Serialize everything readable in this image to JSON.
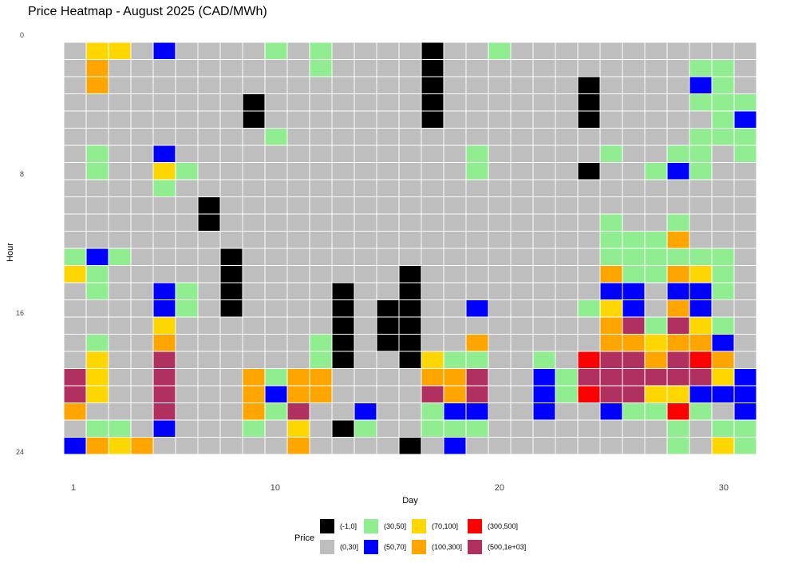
{
  "chart_data": {
    "type": "heatmap",
    "title": "Price Heatmap - August 2025 (CAD/MWh)",
    "xlabel": "Day",
    "ylabel": "Hour",
    "x_ticks": [
      1,
      10,
      20,
      30
    ],
    "y_ticks": [
      0,
      8,
      16,
      24
    ],
    "days": [
      1,
      31
    ],
    "hours": [
      0,
      23
    ],
    "legend": {
      "title": "Price",
      "position": "bottom",
      "entries": [
        {
          "label": "(-1,0]",
          "color": "#000000"
        },
        {
          "label": "(0,30]",
          "color": "#bebebe"
        },
        {
          "label": "(30,50]",
          "color": "#90ee90"
        },
        {
          "label": "(50,70]",
          "color": "#0000ff"
        },
        {
          "label": "(70,100]",
          "color": "#ffd700"
        },
        {
          "label": "(100,300]",
          "color": "#ffa500"
        },
        {
          "label": "(300,500]",
          "color": "#ff0000"
        },
        {
          "label": "(500,1e+03]",
          "color": "#b03060"
        }
      ]
    },
    "default_category": "(0,30]",
    "cells": [
      {
        "day": 2,
        "hour": 0,
        "cat": "(70,100]"
      },
      {
        "day": 3,
        "hour": 0,
        "cat": "(70,100]"
      },
      {
        "day": 5,
        "hour": 0,
        "cat": "(50,70]"
      },
      {
        "day": 10,
        "hour": 0,
        "cat": "(30,50]"
      },
      {
        "day": 12,
        "hour": 0,
        "cat": "(30,50]"
      },
      {
        "day": 17,
        "hour": 0,
        "cat": "(-1,0]"
      },
      {
        "day": 20,
        "hour": 0,
        "cat": "(30,50]"
      },
      {
        "day": 2,
        "hour": 1,
        "cat": "(100,300]"
      },
      {
        "day": 12,
        "hour": 1,
        "cat": "(30,50]"
      },
      {
        "day": 17,
        "hour": 1,
        "cat": "(-1,0]"
      },
      {
        "day": 29,
        "hour": 1,
        "cat": "(30,50]"
      },
      {
        "day": 30,
        "hour": 1,
        "cat": "(30,50]"
      },
      {
        "day": 2,
        "hour": 2,
        "cat": "(100,300]"
      },
      {
        "day": 17,
        "hour": 2,
        "cat": "(-1,0]"
      },
      {
        "day": 24,
        "hour": 2,
        "cat": "(-1,0]"
      },
      {
        "day": 29,
        "hour": 2,
        "cat": "(50,70]"
      },
      {
        "day": 30,
        "hour": 2,
        "cat": "(30,50]"
      },
      {
        "day": 9,
        "hour": 3,
        "cat": "(-1,0]"
      },
      {
        "day": 17,
        "hour": 3,
        "cat": "(-1,0]"
      },
      {
        "day": 24,
        "hour": 3,
        "cat": "(-1,0]"
      },
      {
        "day": 29,
        "hour": 3,
        "cat": "(30,50]"
      },
      {
        "day": 30,
        "hour": 3,
        "cat": "(30,50]"
      },
      {
        "day": 31,
        "hour": 3,
        "cat": "(30,50]"
      },
      {
        "day": 9,
        "hour": 4,
        "cat": "(-1,0]"
      },
      {
        "day": 17,
        "hour": 4,
        "cat": "(-1,0]"
      },
      {
        "day": 24,
        "hour": 4,
        "cat": "(-1,0]"
      },
      {
        "day": 30,
        "hour": 4,
        "cat": "(30,50]"
      },
      {
        "day": 31,
        "hour": 4,
        "cat": "(50,70]"
      },
      {
        "day": 10,
        "hour": 5,
        "cat": "(30,50]"
      },
      {
        "day": 29,
        "hour": 5,
        "cat": "(30,50]"
      },
      {
        "day": 30,
        "hour": 5,
        "cat": "(30,50]"
      },
      {
        "day": 31,
        "hour": 5,
        "cat": "(30,50]"
      },
      {
        "day": 2,
        "hour": 6,
        "cat": "(30,50]"
      },
      {
        "day": 5,
        "hour": 6,
        "cat": "(50,70]"
      },
      {
        "day": 19,
        "hour": 6,
        "cat": "(30,50]"
      },
      {
        "day": 25,
        "hour": 6,
        "cat": "(30,50]"
      },
      {
        "day": 28,
        "hour": 6,
        "cat": "(30,50]"
      },
      {
        "day": 29,
        "hour": 6,
        "cat": "(30,50]"
      },
      {
        "day": 31,
        "hour": 6,
        "cat": "(30,50]"
      },
      {
        "day": 2,
        "hour": 7,
        "cat": "(30,50]"
      },
      {
        "day": 5,
        "hour": 7,
        "cat": "(70,100]"
      },
      {
        "day": 6,
        "hour": 7,
        "cat": "(30,50]"
      },
      {
        "day": 19,
        "hour": 7,
        "cat": "(30,50]"
      },
      {
        "day": 24,
        "hour": 7,
        "cat": "(-1,0]"
      },
      {
        "day": 27,
        "hour": 7,
        "cat": "(30,50]"
      },
      {
        "day": 28,
        "hour": 7,
        "cat": "(50,70]"
      },
      {
        "day": 29,
        "hour": 7,
        "cat": "(30,50]"
      },
      {
        "day": 5,
        "hour": 8,
        "cat": "(30,50]"
      },
      {
        "day": 7,
        "hour": 9,
        "cat": "(-1,0]"
      },
      {
        "day": 7,
        "hour": 10,
        "cat": "(-1,0]"
      },
      {
        "day": 25,
        "hour": 10,
        "cat": "(30,50]"
      },
      {
        "day": 28,
        "hour": 10,
        "cat": "(30,50]"
      },
      {
        "day": 25,
        "hour": 11,
        "cat": "(30,50]"
      },
      {
        "day": 26,
        "hour": 11,
        "cat": "(30,50]"
      },
      {
        "day": 27,
        "hour": 11,
        "cat": "(30,50]"
      },
      {
        "day": 28,
        "hour": 11,
        "cat": "(100,300]"
      },
      {
        "day": 1,
        "hour": 12,
        "cat": "(30,50]"
      },
      {
        "day": 2,
        "hour": 12,
        "cat": "(50,70]"
      },
      {
        "day": 3,
        "hour": 12,
        "cat": "(30,50]"
      },
      {
        "day": 8,
        "hour": 12,
        "cat": "(-1,0]"
      },
      {
        "day": 25,
        "hour": 12,
        "cat": "(30,50]"
      },
      {
        "day": 26,
        "hour": 12,
        "cat": "(30,50]"
      },
      {
        "day": 27,
        "hour": 12,
        "cat": "(30,50]"
      },
      {
        "day": 28,
        "hour": 12,
        "cat": "(30,50]"
      },
      {
        "day": 29,
        "hour": 12,
        "cat": "(30,50]"
      },
      {
        "day": 30,
        "hour": 12,
        "cat": "(30,50]"
      },
      {
        "day": 1,
        "hour": 13,
        "cat": "(70,100]"
      },
      {
        "day": 2,
        "hour": 13,
        "cat": "(30,50]"
      },
      {
        "day": 8,
        "hour": 13,
        "cat": "(-1,0]"
      },
      {
        "day": 16,
        "hour": 13,
        "cat": "(-1,0]"
      },
      {
        "day": 25,
        "hour": 13,
        "cat": "(100,300]"
      },
      {
        "day": 26,
        "hour": 13,
        "cat": "(30,50]"
      },
      {
        "day": 27,
        "hour": 13,
        "cat": "(30,50]"
      },
      {
        "day": 28,
        "hour": 13,
        "cat": "(100,300]"
      },
      {
        "day": 29,
        "hour": 13,
        "cat": "(70,100]"
      },
      {
        "day": 30,
        "hour": 13,
        "cat": "(30,50]"
      },
      {
        "day": 2,
        "hour": 14,
        "cat": "(30,50]"
      },
      {
        "day": 5,
        "hour": 14,
        "cat": "(50,70]"
      },
      {
        "day": 6,
        "hour": 14,
        "cat": "(30,50]"
      },
      {
        "day": 8,
        "hour": 14,
        "cat": "(-1,0]"
      },
      {
        "day": 13,
        "hour": 14,
        "cat": "(-1,0]"
      },
      {
        "day": 16,
        "hour": 14,
        "cat": "(-1,0]"
      },
      {
        "day": 25,
        "hour": 14,
        "cat": "(50,70]"
      },
      {
        "day": 26,
        "hour": 14,
        "cat": "(50,70]"
      },
      {
        "day": 28,
        "hour": 14,
        "cat": "(50,70]"
      },
      {
        "day": 29,
        "hour": 14,
        "cat": "(50,70]"
      },
      {
        "day": 30,
        "hour": 14,
        "cat": "(30,50]"
      },
      {
        "day": 5,
        "hour": 15,
        "cat": "(50,70]"
      },
      {
        "day": 6,
        "hour": 15,
        "cat": "(30,50]"
      },
      {
        "day": 8,
        "hour": 15,
        "cat": "(-1,0]"
      },
      {
        "day": 13,
        "hour": 15,
        "cat": "(-1,0]"
      },
      {
        "day": 15,
        "hour": 15,
        "cat": "(-1,0]"
      },
      {
        "day": 16,
        "hour": 15,
        "cat": "(-1,0]"
      },
      {
        "day": 19,
        "hour": 15,
        "cat": "(50,70]"
      },
      {
        "day": 24,
        "hour": 15,
        "cat": "(30,50]"
      },
      {
        "day": 25,
        "hour": 15,
        "cat": "(70,100]"
      },
      {
        "day": 26,
        "hour": 15,
        "cat": "(50,70]"
      },
      {
        "day": 28,
        "hour": 15,
        "cat": "(100,300]"
      },
      {
        "day": 29,
        "hour": 15,
        "cat": "(50,70]"
      },
      {
        "day": 5,
        "hour": 16,
        "cat": "(70,100]"
      },
      {
        "day": 13,
        "hour": 16,
        "cat": "(-1,0]"
      },
      {
        "day": 15,
        "hour": 16,
        "cat": "(-1,0]"
      },
      {
        "day": 16,
        "hour": 16,
        "cat": "(-1,0]"
      },
      {
        "day": 25,
        "hour": 16,
        "cat": "(100,300]"
      },
      {
        "day": 26,
        "hour": 16,
        "cat": "(500,1e+03]"
      },
      {
        "day": 27,
        "hour": 16,
        "cat": "(30,50]"
      },
      {
        "day": 28,
        "hour": 16,
        "cat": "(500,1e+03]"
      },
      {
        "day": 29,
        "hour": 16,
        "cat": "(70,100]"
      },
      {
        "day": 30,
        "hour": 16,
        "cat": "(30,50]"
      },
      {
        "day": 2,
        "hour": 17,
        "cat": "(30,50]"
      },
      {
        "day": 5,
        "hour": 17,
        "cat": "(100,300]"
      },
      {
        "day": 12,
        "hour": 17,
        "cat": "(30,50]"
      },
      {
        "day": 13,
        "hour": 17,
        "cat": "(-1,0]"
      },
      {
        "day": 15,
        "hour": 17,
        "cat": "(-1,0]"
      },
      {
        "day": 16,
        "hour": 17,
        "cat": "(-1,0]"
      },
      {
        "day": 19,
        "hour": 17,
        "cat": "(100,300]"
      },
      {
        "day": 25,
        "hour": 17,
        "cat": "(100,300]"
      },
      {
        "day": 26,
        "hour": 17,
        "cat": "(100,300]"
      },
      {
        "day": 27,
        "hour": 17,
        "cat": "(70,100]"
      },
      {
        "day": 28,
        "hour": 17,
        "cat": "(100,300]"
      },
      {
        "day": 29,
        "hour": 17,
        "cat": "(100,300]"
      },
      {
        "day": 30,
        "hour": 17,
        "cat": "(50,70]"
      },
      {
        "day": 2,
        "hour": 18,
        "cat": "(70,100]"
      },
      {
        "day": 5,
        "hour": 18,
        "cat": "(500,1e+03]"
      },
      {
        "day": 12,
        "hour": 18,
        "cat": "(30,50]"
      },
      {
        "day": 13,
        "hour": 18,
        "cat": "(-1,0]"
      },
      {
        "day": 16,
        "hour": 18,
        "cat": "(-1,0]"
      },
      {
        "day": 17,
        "hour": 18,
        "cat": "(70,100]"
      },
      {
        "day": 18,
        "hour": 18,
        "cat": "(30,50]"
      },
      {
        "day": 19,
        "hour": 18,
        "cat": "(30,50]"
      },
      {
        "day": 22,
        "hour": 18,
        "cat": "(30,50]"
      },
      {
        "day": 24,
        "hour": 18,
        "cat": "(300,500]"
      },
      {
        "day": 25,
        "hour": 18,
        "cat": "(500,1e+03]"
      },
      {
        "day": 26,
        "hour": 18,
        "cat": "(500,1e+03]"
      },
      {
        "day": 27,
        "hour": 18,
        "cat": "(100,300]"
      },
      {
        "day": 28,
        "hour": 18,
        "cat": "(500,1e+03]"
      },
      {
        "day": 29,
        "hour": 18,
        "cat": "(300,500]"
      },
      {
        "day": 30,
        "hour": 18,
        "cat": "(100,300]"
      },
      {
        "day": 1,
        "hour": 19,
        "cat": "(500,1e+03]"
      },
      {
        "day": 2,
        "hour": 19,
        "cat": "(70,100]"
      },
      {
        "day": 5,
        "hour": 19,
        "cat": "(500,1e+03]"
      },
      {
        "day": 9,
        "hour": 19,
        "cat": "(100,300]"
      },
      {
        "day": 10,
        "hour": 19,
        "cat": "(30,50]"
      },
      {
        "day": 11,
        "hour": 19,
        "cat": "(100,300]"
      },
      {
        "day": 12,
        "hour": 19,
        "cat": "(100,300]"
      },
      {
        "day": 17,
        "hour": 19,
        "cat": "(100,300]"
      },
      {
        "day": 18,
        "hour": 19,
        "cat": "(100,300]"
      },
      {
        "day": 19,
        "hour": 19,
        "cat": "(500,1e+03]"
      },
      {
        "day": 22,
        "hour": 19,
        "cat": "(50,70]"
      },
      {
        "day": 23,
        "hour": 19,
        "cat": "(30,50]"
      },
      {
        "day": 24,
        "hour": 19,
        "cat": "(500,1e+03]"
      },
      {
        "day": 25,
        "hour": 19,
        "cat": "(500,1e+03]"
      },
      {
        "day": 26,
        "hour": 19,
        "cat": "(500,1e+03]"
      },
      {
        "day": 27,
        "hour": 19,
        "cat": "(500,1e+03]"
      },
      {
        "day": 28,
        "hour": 19,
        "cat": "(500,1e+03]"
      },
      {
        "day": 29,
        "hour": 19,
        "cat": "(500,1e+03]"
      },
      {
        "day": 30,
        "hour": 19,
        "cat": "(70,100]"
      },
      {
        "day": 31,
        "hour": 19,
        "cat": "(50,70]"
      },
      {
        "day": 1,
        "hour": 20,
        "cat": "(500,1e+03]"
      },
      {
        "day": 2,
        "hour": 20,
        "cat": "(70,100]"
      },
      {
        "day": 5,
        "hour": 20,
        "cat": "(500,1e+03]"
      },
      {
        "day": 9,
        "hour": 20,
        "cat": "(100,300]"
      },
      {
        "day": 10,
        "hour": 20,
        "cat": "(50,70]"
      },
      {
        "day": 11,
        "hour": 20,
        "cat": "(100,300]"
      },
      {
        "day": 12,
        "hour": 20,
        "cat": "(100,300]"
      },
      {
        "day": 17,
        "hour": 20,
        "cat": "(500,1e+03]"
      },
      {
        "day": 18,
        "hour": 20,
        "cat": "(100,300]"
      },
      {
        "day": 19,
        "hour": 20,
        "cat": "(500,1e+03]"
      },
      {
        "day": 22,
        "hour": 20,
        "cat": "(50,70]"
      },
      {
        "day": 23,
        "hour": 20,
        "cat": "(30,50]"
      },
      {
        "day": 24,
        "hour": 20,
        "cat": "(300,500]"
      },
      {
        "day": 25,
        "hour": 20,
        "cat": "(500,1e+03]"
      },
      {
        "day": 26,
        "hour": 20,
        "cat": "(500,1e+03]"
      },
      {
        "day": 27,
        "hour": 20,
        "cat": "(70,100]"
      },
      {
        "day": 28,
        "hour": 20,
        "cat": "(70,100]"
      },
      {
        "day": 29,
        "hour": 20,
        "cat": "(50,70]"
      },
      {
        "day": 30,
        "hour": 20,
        "cat": "(50,70]"
      },
      {
        "day": 31,
        "hour": 20,
        "cat": "(50,70]"
      },
      {
        "day": 1,
        "hour": 21,
        "cat": "(100,300]"
      },
      {
        "day": 5,
        "hour": 21,
        "cat": "(500,1e+03]"
      },
      {
        "day": 9,
        "hour": 21,
        "cat": "(100,300]"
      },
      {
        "day": 10,
        "hour": 21,
        "cat": "(30,50]"
      },
      {
        "day": 11,
        "hour": 21,
        "cat": "(500,1e+03]"
      },
      {
        "day": 14,
        "hour": 21,
        "cat": "(50,70]"
      },
      {
        "day": 17,
        "hour": 21,
        "cat": "(30,50]"
      },
      {
        "day": 18,
        "hour": 21,
        "cat": "(50,70]"
      },
      {
        "day": 19,
        "hour": 21,
        "cat": "(50,70]"
      },
      {
        "day": 22,
        "hour": 21,
        "cat": "(50,70]"
      },
      {
        "day": 25,
        "hour": 21,
        "cat": "(50,70]"
      },
      {
        "day": 26,
        "hour": 21,
        "cat": "(30,50]"
      },
      {
        "day": 27,
        "hour": 21,
        "cat": "(30,50]"
      },
      {
        "day": 28,
        "hour": 21,
        "cat": "(300,500]"
      },
      {
        "day": 29,
        "hour": 21,
        "cat": "(30,50]"
      },
      {
        "day": 31,
        "hour": 21,
        "cat": "(50,70]"
      },
      {
        "day": 2,
        "hour": 22,
        "cat": "(30,50]"
      },
      {
        "day": 3,
        "hour": 22,
        "cat": "(30,50]"
      },
      {
        "day": 5,
        "hour": 22,
        "cat": "(50,70]"
      },
      {
        "day": 9,
        "hour": 22,
        "cat": "(30,50]"
      },
      {
        "day": 11,
        "hour": 22,
        "cat": "(70,100]"
      },
      {
        "day": 13,
        "hour": 22,
        "cat": "(-1,0]"
      },
      {
        "day": 14,
        "hour": 22,
        "cat": "(30,50]"
      },
      {
        "day": 17,
        "hour": 22,
        "cat": "(30,50]"
      },
      {
        "day": 18,
        "hour": 22,
        "cat": "(30,50]"
      },
      {
        "day": 19,
        "hour": 22,
        "cat": "(30,50]"
      },
      {
        "day": 28,
        "hour": 22,
        "cat": "(30,50]"
      },
      {
        "day": 30,
        "hour": 22,
        "cat": "(30,50]"
      },
      {
        "day": 31,
        "hour": 22,
        "cat": "(30,50]"
      },
      {
        "day": 1,
        "hour": 23,
        "cat": "(50,70]"
      },
      {
        "day": 2,
        "hour": 23,
        "cat": "(100,300]"
      },
      {
        "day": 3,
        "hour": 23,
        "cat": "(70,100]"
      },
      {
        "day": 4,
        "hour": 23,
        "cat": "(100,300]"
      },
      {
        "day": 11,
        "hour": 23,
        "cat": "(100,300]"
      },
      {
        "day": 16,
        "hour": 23,
        "cat": "(-1,0]"
      },
      {
        "day": 18,
        "hour": 23,
        "cat": "(50,70]"
      },
      {
        "day": 28,
        "hour": 23,
        "cat": "(30,50]"
      },
      {
        "day": 30,
        "hour": 23,
        "cat": "(70,100]"
      },
      {
        "day": 31,
        "hour": 23,
        "cat": "(30,50]"
      }
    ]
  }
}
